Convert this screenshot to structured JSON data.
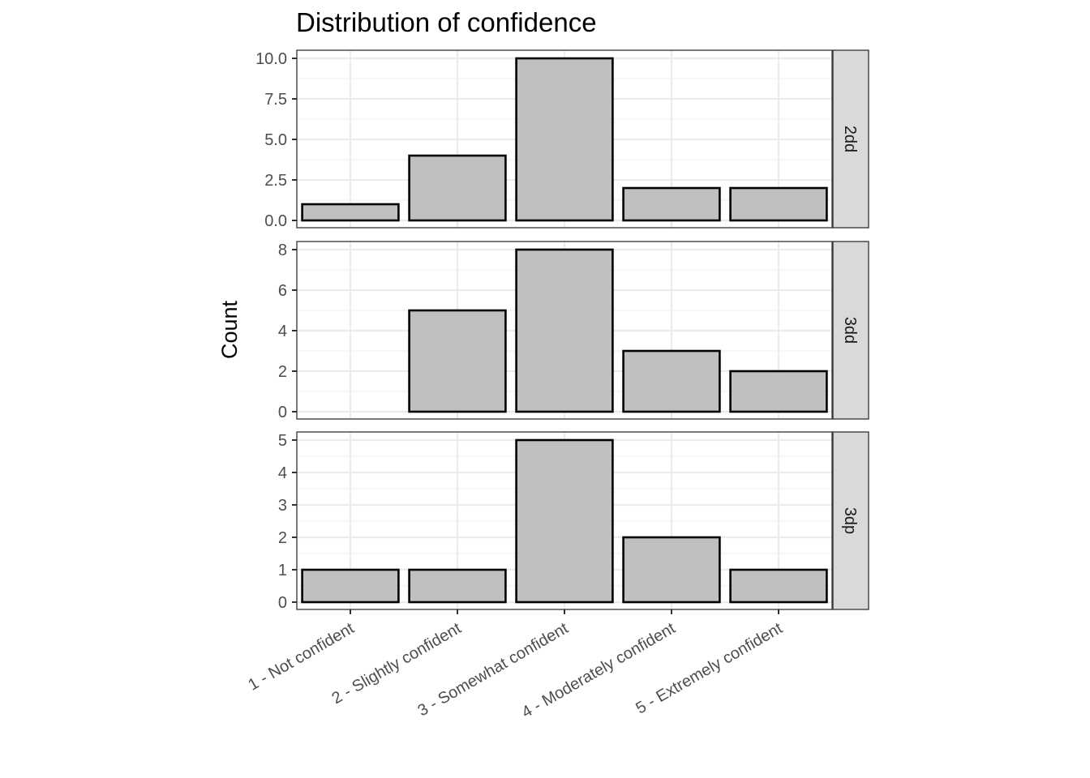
{
  "chart_data": {
    "type": "bar",
    "title": "Distribution of confidence",
    "xlabel": "",
    "ylabel": "Count",
    "categories": [
      "1 - Not confident",
      "2 - Slightly confident",
      "3 - Somewhat confident",
      "4 - Moderately confident",
      "5 - Extremely confident"
    ],
    "grid": true,
    "facets": [
      {
        "label": "2dd",
        "values": [
          1,
          4,
          10,
          2,
          2
        ],
        "ylim": [
          0,
          10
        ],
        "yticks": [
          0,
          2.5,
          5,
          7.5,
          10
        ],
        "ytick_labels": [
          "0.0",
          "2.5",
          "5.0",
          "7.5",
          "10.0"
        ]
      },
      {
        "label": "3dd",
        "values": [
          0,
          5,
          8,
          3,
          2
        ],
        "ylim": [
          0,
          8
        ],
        "yticks": [
          0,
          2,
          4,
          6,
          8
        ],
        "ytick_labels": [
          "0",
          "2",
          "4",
          "6",
          "8"
        ]
      },
      {
        "label": "3dp",
        "values": [
          1,
          1,
          5,
          2,
          1
        ],
        "ylim": [
          0,
          5
        ],
        "yticks": [
          0,
          1,
          2,
          3,
          4,
          5
        ],
        "ytick_labels": [
          "0",
          "1",
          "2",
          "3",
          "4",
          "5"
        ]
      }
    ],
    "colors": {
      "bar_fill": "#c0c0c0",
      "bar_stroke": "#000000",
      "strip_fill": "#d9d9d9",
      "grid": "#ebebeb"
    }
  }
}
